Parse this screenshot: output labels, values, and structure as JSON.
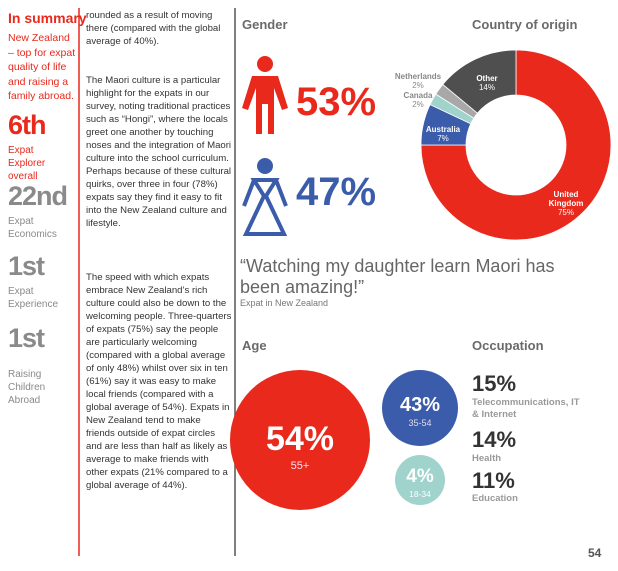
{
  "sidebar": {
    "heading": "In summary",
    "intro": "New Zealand – top for expat quality of life and raising a family abroad.",
    "rankings": [
      {
        "rank": "6th",
        "label": "Expat Explorer overall"
      },
      {
        "rank": "22nd",
        "label": "Expat Economics"
      },
      {
        "rank": "1st",
        "label": "Expat Experience"
      },
      {
        "rank": "1st",
        "label": "Raising Children Abroad"
      }
    ]
  },
  "body": {
    "paragraphs": [
      "rounded as a result of moving there (compared with the global average of 40%).",
      "The Maori culture is a particular highlight for the expats in our survey, noting traditional practices such as “Hongi”, where the locals greet one another by touching noses and the integration of Maori culture into the school curriculum. Perhaps because of these cultural quirks, over three in four (78%) expats say they find it easy to fit into the New Zealand culture and lifestyle.",
      "The speed with which expats embrace New Zealand’s rich culture could also be down to the welcoming people. Three-quarters of expats (75%) say the people are particularly welcoming (compared with a global average of only 48%) whilst over six in ten (61%) say it was easy to make local friends (compared with a global average of 54%). Expats in New Zealand tend to make friends outside of expat circles and are less than half as likely as average to make friends with other expats (21% compared to a global average of 44%)."
    ]
  },
  "gender": {
    "title": "Gender",
    "male": "53%",
    "female": "47%"
  },
  "chart_data": {
    "type": "pie",
    "title": "Country of origin",
    "categories": [
      "United Kingdom",
      "Australia",
      "Canada",
      "Netherlands",
      "Other"
    ],
    "values": [
      75,
      7,
      2,
      2,
      14
    ],
    "value_labels": [
      "75%",
      "7%",
      "2%",
      "2%",
      "14%"
    ],
    "colors": [
      "#e8291c",
      "#3b5caa",
      "#9fd3cc",
      "#a8a8a8",
      "#4f4f4f"
    ]
  },
  "quote": {
    "text": "“Watching my daughter learn Maori has been amazing!”",
    "source": "Expat in New Zealand"
  },
  "age": {
    "title": "Age",
    "groups": [
      {
        "share": "54%",
        "range": "55+"
      },
      {
        "share": "43%",
        "range": "35-54"
      },
      {
        "share": "4%",
        "range": "18-34"
      }
    ]
  },
  "occupation": {
    "title": "Occupation",
    "items": [
      {
        "share": "15%",
        "label": "Telecommunications, IT & Internet"
      },
      {
        "share": "14%",
        "label": "Health"
      },
      {
        "share": "11%",
        "label": "Education"
      }
    ]
  },
  "page_number": "54"
}
